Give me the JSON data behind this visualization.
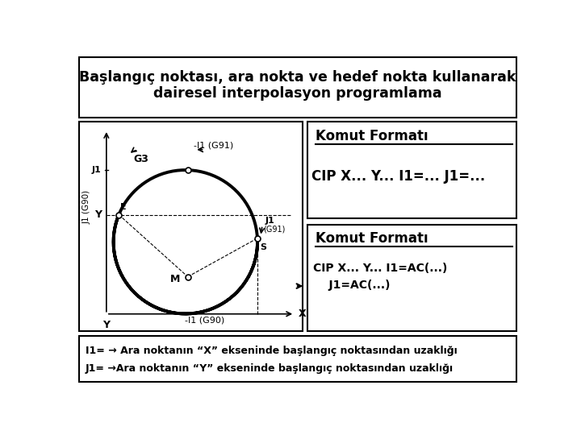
{
  "title_line1": "Başlangıç noktası, ara nokta ve hedef nokta kullanarak",
  "title_line2": "dairesel interpolasyon programlama",
  "box1_title": "Komut Formatı",
  "box1_text": "CIP X... Y... I1=... J1=...",
  "box2_title": "Komut Formatı",
  "box2_line1": "CIP X... Y... I1=AC(...)",
  "box2_line2": "    J1=AC(...)",
  "footnote1": "I1= → Ara noktanın “X” ekseninde başlangıç noktasından uzaklığı",
  "footnote2": "J1= →Ara noktanın “Y” ekseninde başlangıç noktasından uzaklığı",
  "bg_color": "#ffffff",
  "border_color": "#000000",
  "text_color": "#000000"
}
